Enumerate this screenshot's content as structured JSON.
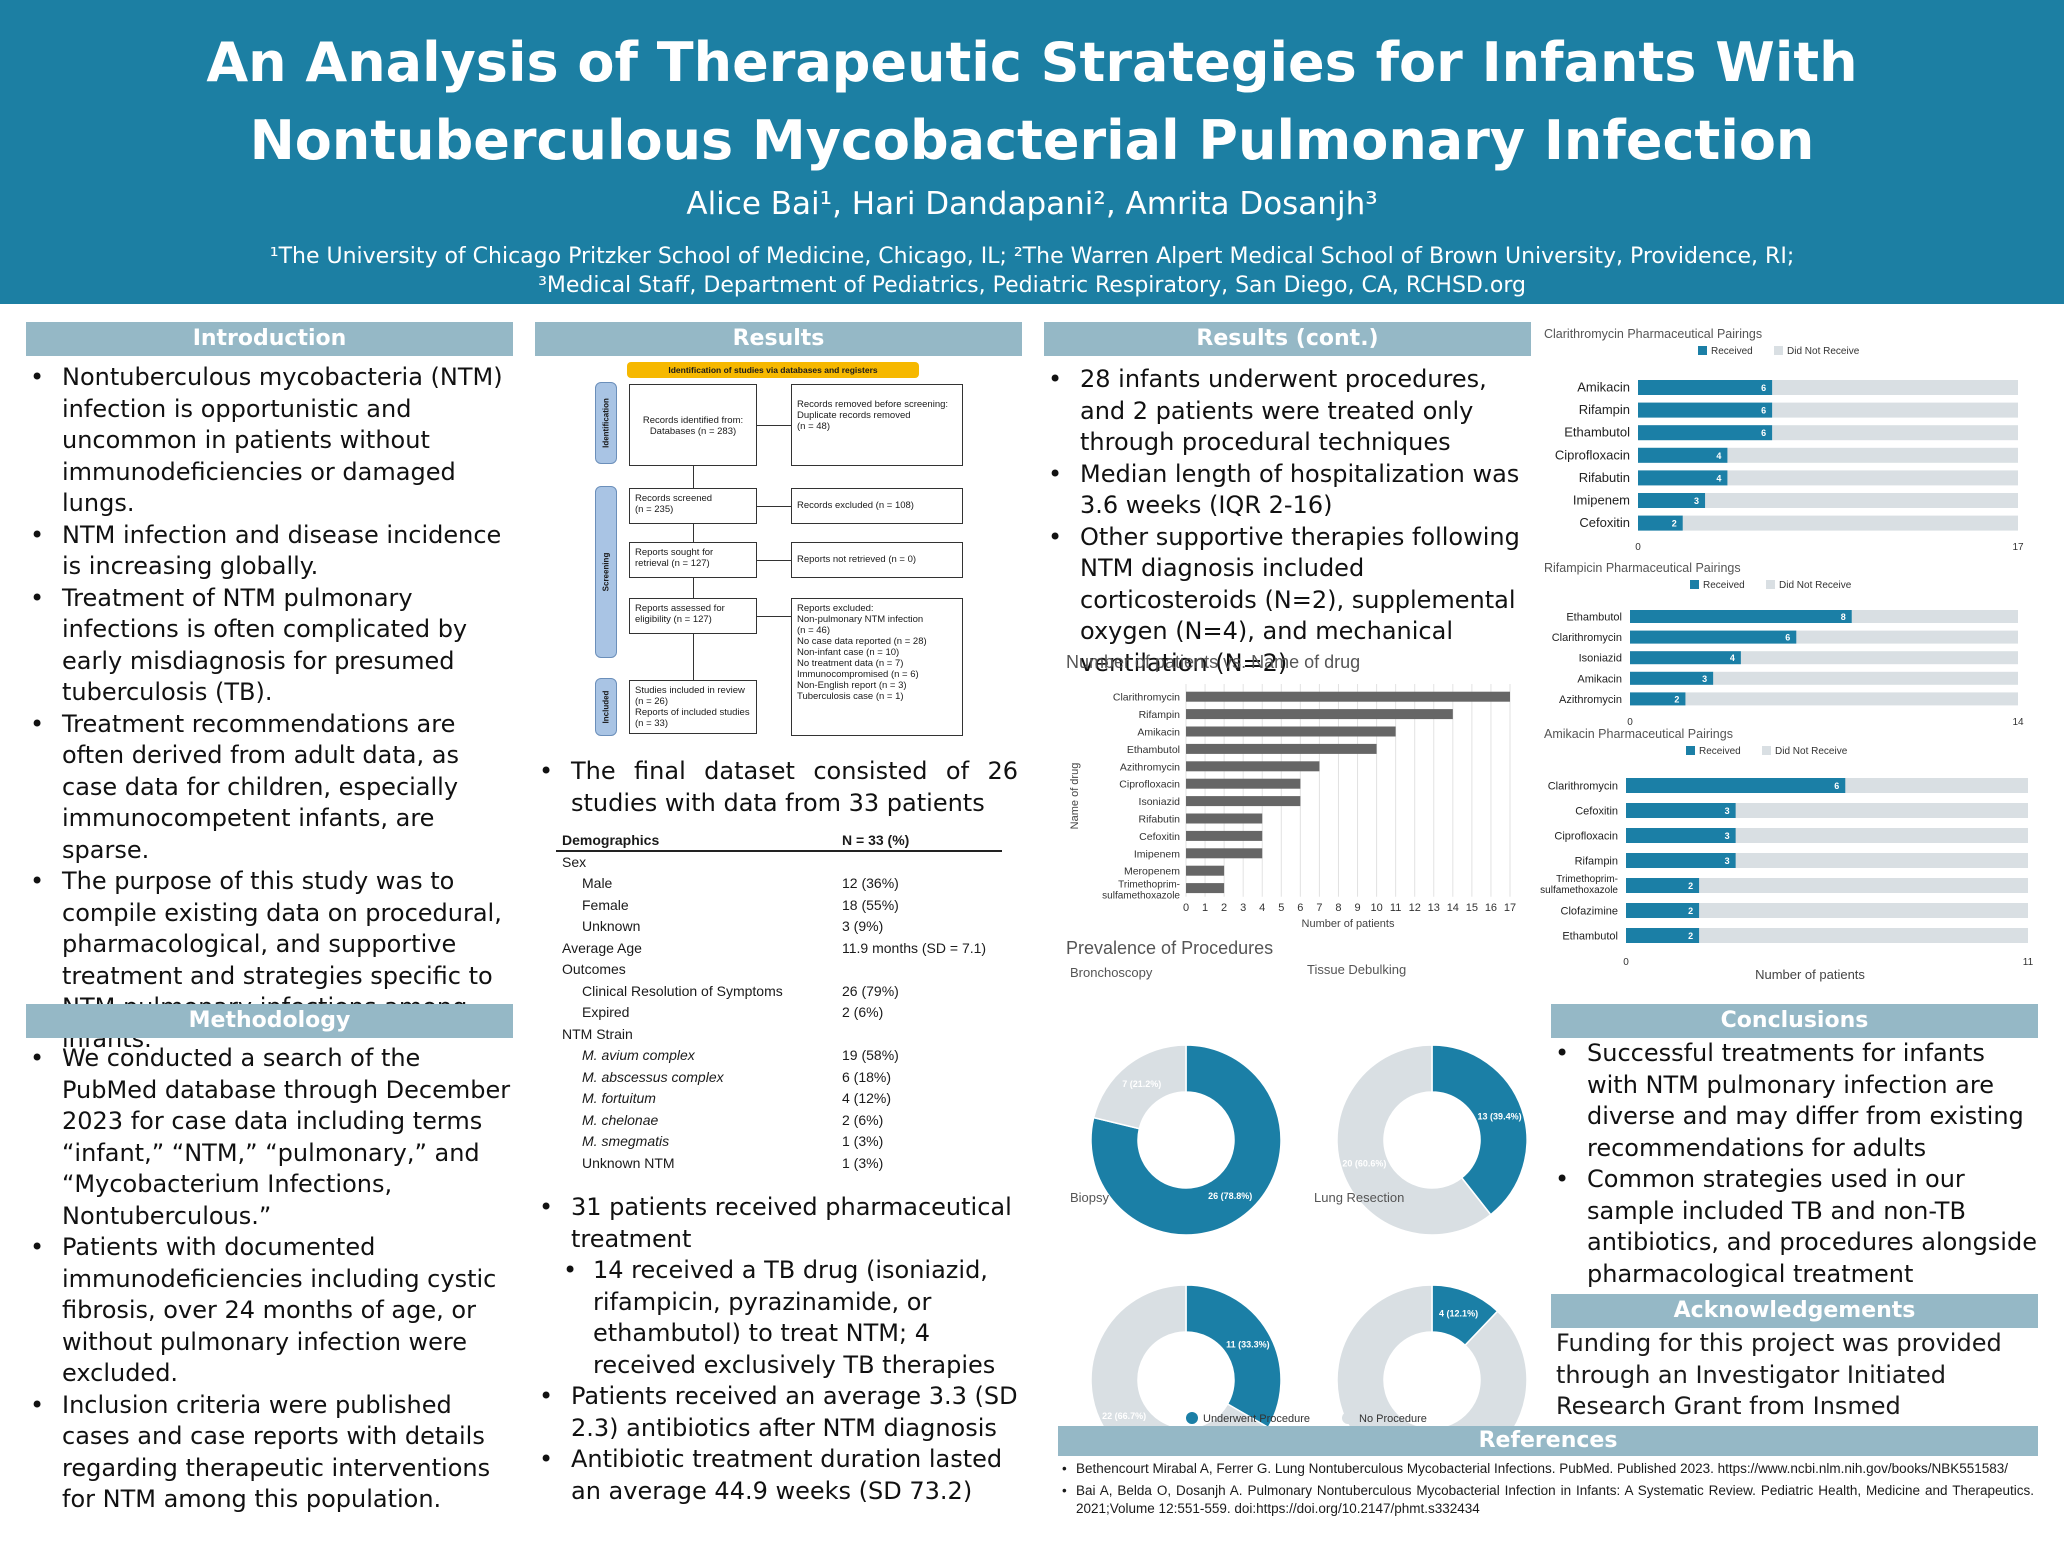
{
  "header": {
    "title_line1": "An Analysis of Therapeutic Strategies for Infants With",
    "title_line2": "Nontuberculous Mycobacterial Pulmonary Infection",
    "authors": "Alice Bai¹, Hari Dandapani², Amrita Dosanjh³",
    "affil_line1": "¹The University of Chicago Pritzker School of Medicine, Chicago, IL; ²The Warren Alpert Medical School of Brown University, Providence, RI;",
    "affil_line2": "³Medical Staff, Department of Pediatrics, Pediatric Respiratory, San Diego, CA, RCHSD.org",
    "colors": {
      "header_bg": "#1c7fa3",
      "section_head": "#95b8c6",
      "accent": "#1b7fa6",
      "remainder": "#d9dfe3"
    }
  },
  "intro": {
    "heading": "Introduction",
    "bullets": [
      "Nontuberculous mycobacteria (NTM) infection is opportunistic and uncommon in patients without immunodeficiencies or damaged lungs.",
      "NTM infection and disease incidence is increasing globally.",
      "Treatment of NTM pulmonary infections is often complicated by early misdiagnosis for presumed tuberculosis (TB).",
      "Treatment recommendations are often derived from adult data, as case data for children, especially immunocompetent infants, are sparse.",
      "The purpose of this study was to compile existing data on procedural, pharmacological, and supportive treatment and strategies specific to NTM pulmonary infections among infants."
    ]
  },
  "methods": {
    "heading": "Methodology",
    "bullets": [
      "We conducted a search of the PubMed database through December 2023 for case data including terms “infant,” “NTM,” “pulmonary,” and “Mycobacterium Infections, Nontuberculous.”",
      "Patients with documented immunodeficiencies including cystic fibrosis, over 24 months of age, or without pulmonary infection were excluded.",
      "Inclusion criteria were published cases and case reports with details regarding therapeutic interventions for NTM among this population."
    ]
  },
  "results": {
    "heading": "Results",
    "prisma": {
      "banner": "Identification of studies via databases and registers",
      "side_identification": "Identification",
      "side_screening": "Screening",
      "side_included": "Included",
      "identified": "Records identified from:\nDatabases (n = 283)",
      "removed": "Records removed before screening:\n  Duplicate records removed\n  (n = 48)",
      "screened": "Records screened\n(n = 235)",
      "excluded": "Records excluded (n = 108)",
      "sought": "Reports sought for\nretrieval (n = 127)",
      "not_retrieved": "Reports not retrieved (n = 0)",
      "assessed": "Reports assessed for\neligibility (n = 127)",
      "reports_excluded": "Reports excluded:\n  Non-pulmonary NTM infection\n  (n = 46)\n  No case data reported (n = 28)\n  Non-infant case (n = 10)\n  No treatment data (n = 7)\n  Immunocompromised (n = 6)\n  Non-English report (n = 3)\n  Tuberculosis case (n = 1)",
      "included": "Studies included in review\n(n = 26)\nReports of included studies\n(n = 33)"
    },
    "final_dataset": "The final dataset consisted of 26 studies with data from 33 patients",
    "demographics": {
      "header_left": "Demographics",
      "header_right": "N = 33 (%)",
      "rows": [
        {
          "label": "Sex",
          "value": "",
          "indent": false,
          "italic": false
        },
        {
          "label": "Male",
          "value": "12 (36%)",
          "indent": true,
          "italic": false
        },
        {
          "label": "Female",
          "value": "18 (55%)",
          "indent": true,
          "italic": false
        },
        {
          "label": "Unknown",
          "value": "3 (9%)",
          "indent": true,
          "italic": false
        },
        {
          "label": "Average Age",
          "value": "11.9 months (SD = 7.1)",
          "indent": false,
          "italic": false
        },
        {
          "label": "Outcomes",
          "value": "",
          "indent": false,
          "italic": false
        },
        {
          "label": "Clinical Resolution of Symptoms",
          "value": "26 (79%)",
          "indent": true,
          "italic": false
        },
        {
          "label": "Expired",
          "value": "2 (6%)",
          "indent": true,
          "italic": false
        },
        {
          "label": "NTM Strain",
          "value": "",
          "indent": false,
          "italic": false
        },
        {
          "label": "M. avium complex",
          "value": "19 (58%)",
          "indent": true,
          "italic": true
        },
        {
          "label": "M. abscessus complex",
          "value": "6 (18%)",
          "indent": true,
          "italic": true
        },
        {
          "label": "M. fortuitum",
          "value": "4 (12%)",
          "indent": true,
          "italic": true
        },
        {
          "label": "M. chelonae",
          "value": "2 (6%)",
          "indent": true,
          "italic": true
        },
        {
          "label": "M. smegmatis",
          "value": "1 (3%)",
          "indent": true,
          "italic": true
        },
        {
          "label": "Unknown NTM",
          "value": "1 (3%)",
          "indent": true,
          "italic": false
        }
      ]
    },
    "pharma_bullets": [
      {
        "text": "31 patients received pharmaceutical treatment",
        "sub": false
      },
      {
        "text": "14 received a TB drug (isoniazid, rifampicin, pyrazinamide, or ethambutol) to treat NTM; 4 received exclusively TB therapies",
        "sub": true
      },
      {
        "text": "Patients received an average 3.3 (SD 2.3) antibiotics after NTM diagnosis",
        "sub": false
      },
      {
        "text": "Antibiotic treatment duration lasted an average 44.9 weeks (SD 73.2)",
        "sub": false
      }
    ]
  },
  "results_cont": {
    "heading": "Results (cont.)",
    "bullets": [
      "28 infants underwent procedures, and 2 patients were treated only through procedural techniques",
      "Median length of hospitalization was 3.6 weeks (IQR 2-16)",
      "Other supportive therapies following NTM diagnosis included corticosteroids (N=2), supplemental oxygen (N=4), and mechanical ventilation (N=2)"
    ]
  },
  "chart_data": [
    {
      "type": "bar",
      "orientation": "horizontal",
      "title": "Number of patients vs. Name of drug",
      "xlabel": "Number of patients",
      "ylabel": "Name of drug",
      "categories": [
        "Clarithromycin",
        "Rifampin",
        "Amikacin",
        "Ethambutol",
        "Azithromycin",
        "Ciprofloxacin",
        "Isoniazid",
        "Rifabutin",
        "Cefoxitin",
        "Imipenem",
        "Meropenem",
        "Trimethoprim-sulfamethoxazole"
      ],
      "values": [
        17,
        14,
        11,
        10,
        7,
        6,
        6,
        4,
        4,
        4,
        2,
        2
      ],
      "xlim": [
        0,
        17
      ],
      "color": "#666666"
    },
    {
      "type": "pie",
      "title": "Prevalence of Procedures",
      "legend": [
        "Underwent Procedure",
        "No Procedure"
      ],
      "colors": [
        "#1b7fa6",
        "#d9dfe3"
      ],
      "charts": [
        {
          "name": "Bronchoscopy",
          "values": [
            26,
            7
          ],
          "labels": [
            "26 (78.8%)",
            "7 (21.2%)"
          ]
        },
        {
          "name": "Tissue Debulking",
          "values": [
            13,
            20
          ],
          "labels": [
            "13 (39.4%)",
            "20 (60.6%)"
          ]
        },
        {
          "name": "Biopsy",
          "values": [
            11,
            22
          ],
          "labels": [
            "11 (33.3%)",
            "22 (66.7%)"
          ]
        },
        {
          "name": "Lung Resection",
          "values": [
            4,
            29
          ],
          "labels": [
            "4 (12.1%)",
            "29 (87.9%)"
          ]
        }
      ]
    },
    {
      "type": "bar",
      "orientation": "horizontal-stacked",
      "title": "Clarithromycin Pharmaceutical Pairings",
      "legend": [
        "Received",
        "Did Not Receive"
      ],
      "categories": [
        "Amikacin",
        "Rifampin",
        "Ethambutol",
        "Ciprofloxacin",
        "Rifabutin",
        "Imipenem",
        "Cefoxitin"
      ],
      "values": [
        6,
        6,
        6,
        4,
        4,
        3,
        2
      ],
      "total": 17,
      "xlim": [
        0,
        17
      ]
    },
    {
      "type": "bar",
      "orientation": "horizontal-stacked",
      "title": "Rifampicin Pharmaceutical Pairings",
      "legend": [
        "Received",
        "Did Not Receive"
      ],
      "categories": [
        "Ethambutol",
        "Clarithromycin",
        "Isoniazid",
        "Amikacin",
        "Azithromycin"
      ],
      "values": [
        8,
        6,
        4,
        3,
        2
      ],
      "total": 14,
      "xlim": [
        0,
        14
      ]
    },
    {
      "type": "bar",
      "orientation": "horizontal-stacked",
      "title": "Amikacin Pharmaceutical Pairings",
      "legend": [
        "Received",
        "Did Not Receive"
      ],
      "categories": [
        "Clarithromycin",
        "Cefoxitin",
        "Ciprofloxacin",
        "Rifampin",
        "Trimethoprim-sulfamethoxazole",
        "Clofazimine",
        "Ethambutol"
      ],
      "values": [
        6,
        3,
        3,
        3,
        2,
        2,
        2
      ],
      "total": 11,
      "xlim": [
        0,
        11
      ],
      "xlabel": "Number of patients"
    }
  ],
  "conclusions": {
    "heading": "Conclusions",
    "bullets": [
      "Successful treatments for infants with NTM pulmonary infection are diverse and may differ from existing recommendations for adults",
      "Common strategies used in our sample included TB and non-TB antibiotics, and procedures alongside pharmacological treatment"
    ]
  },
  "ack": {
    "heading": "Acknowledgements",
    "text": "Funding for this project was provided through an Investigator Initiated Research Grant from Insmed Incorporated."
  },
  "refs": {
    "heading": "References",
    "items": [
      "Bethencourt Mirabal A, Ferrer G. Lung Nontuberculous Mycobacterial Infections. PubMed. Published 2023. https://www.ncbi.nlm.nih.gov/books/NBK551583/",
      "Bai A, Belda O, Dosanjh A. Pulmonary Nontuberculous Mycobacterial Infection in Infants: A Systematic Review. Pediatric Health, Medicine and Therapeutics. 2021;Volume 12:551-559. doi:https://doi.org/10.2147/phmt.s332434"
    ]
  }
}
